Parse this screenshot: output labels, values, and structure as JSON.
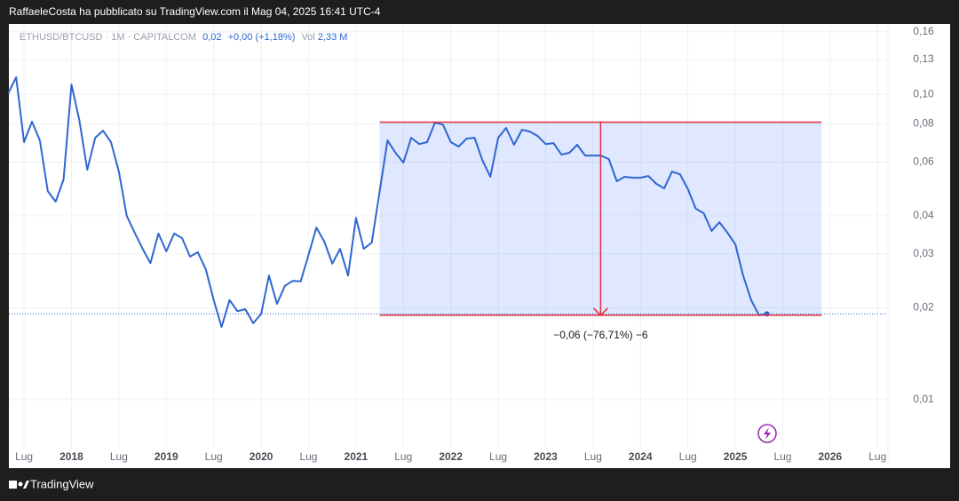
{
  "header": "RaffaeleCosta ha pubblicato su TradingView.com il Mag 04, 2025 16:41 UTC-4",
  "brand": "TradingView",
  "chart_data": {
    "type": "line",
    "legend": {
      "last": "0,02",
      "change": "+0,00 (+1,18%)",
      "volume_label": "Vol",
      "volume": "2,33 M"
    },
    "x": [
      2017.333,
      2017.417,
      2017.5,
      2017.583,
      2017.667,
      2017.75,
      2017.833,
      2017.917,
      2018,
      2018.083,
      2018.167,
      2018.25,
      2018.333,
      2018.417,
      2018.5,
      2018.583,
      2018.667,
      2018.75,
      2018.833,
      2018.917,
      2019,
      2019.083,
      2019.167,
      2019.25,
      2019.333,
      2019.417,
      2019.5,
      2019.583,
      2019.667,
      2019.75,
      2019.833,
      2019.917,
      2020,
      2020.083,
      2020.167,
      2020.25,
      2020.333,
      2020.417,
      2020.5,
      2020.583,
      2020.667,
      2020.75,
      2020.833,
      2020.917,
      2021,
      2021.083,
      2021.167,
      2021.25,
      2021.333,
      2021.417,
      2021.5,
      2021.583,
      2021.667,
      2021.75,
      2021.833,
      2021.917,
      2022,
      2022.083,
      2022.167,
      2022.25,
      2022.333,
      2022.417,
      2022.5,
      2022.583,
      2022.667,
      2022.75,
      2022.833,
      2022.917,
      2023,
      2023.083,
      2023.167,
      2023.25,
      2023.333,
      2023.417,
      2023.5,
      2023.583,
      2023.667,
      2023.75,
      2023.833,
      2023.917,
      2024,
      2024.083,
      2024.167,
      2024.25,
      2024.333,
      2024.417,
      2024.5,
      2024.583,
      2024.667,
      2024.75,
      2024.833,
      2024.917,
      2025,
      2025.083,
      2025.167,
      2025.25,
      2025.333
    ],
    "series": [
      {
        "name": "ETHUSD/BTCUSD · 1M · CAPITALCOM",
        "color": "#2f66d0",
        "values": [
          0.1007,
          0.1136,
          0.0697,
          0.0813,
          0.0706,
          0.0482,
          0.0445,
          0.0526,
          0.1076,
          0.0824,
          0.0566,
          0.072,
          0.076,
          0.0697,
          0.0558,
          0.04,
          0.0352,
          0.0312,
          0.028,
          0.035,
          0.0306,
          0.035,
          0.0338,
          0.0294,
          0.0304,
          0.0267,
          0.0212,
          0.0173,
          0.0212,
          0.0195,
          0.0198,
          0.0178,
          0.0191,
          0.0255,
          0.0206,
          0.0236,
          0.0245,
          0.0244,
          0.0298,
          0.0366,
          0.0329,
          0.0279,
          0.0312,
          0.0255,
          0.0394,
          0.0312,
          0.0327,
          0.0482,
          0.0706,
          0.0643,
          0.0597,
          0.072,
          0.0687,
          0.0697,
          0.0807,
          0.0796,
          0.0697,
          0.0674,
          0.0716,
          0.072,
          0.0609,
          0.0537,
          0.072,
          0.0776,
          0.0683,
          0.0765,
          0.0755,
          0.073,
          0.0687,
          0.0692,
          0.0634,
          0.0643,
          0.0683,
          0.063,
          0.063,
          0.063,
          0.0613,
          0.0519,
          0.0537,
          0.0533,
          0.0533,
          0.054,
          0.0509,
          0.0492,
          0.0558,
          0.0547,
          0.0489,
          0.0422,
          0.0408,
          0.0357,
          0.0381,
          0.0352,
          0.0323,
          0.0255,
          0.0212,
          0.0189,
          0.0191
        ]
      }
    ],
    "range": {
      "x": [
        2021.25,
        2025.91
      ],
      "y": [
        0.081,
        0.0189
      ],
      "label": "−0,06 (−76,71%) −6"
    },
    "xlim": [
      2017.34,
      2026.61
    ],
    "xticks": [
      {
        "value": 2017.5,
        "label": "Lug"
      },
      2018,
      {
        "value": 2018.5,
        "label": "Lug"
      },
      2019,
      {
        "value": 2019.5,
        "label": "Lug"
      },
      2020,
      {
        "value": 2020.5,
        "label": "Lug"
      },
      2021,
      {
        "value": 2021.5,
        "label": "Lug"
      },
      2022,
      {
        "value": 2022.5,
        "label": "Lug"
      },
      2023,
      {
        "value": 2023.5,
        "label": "Lug"
      },
      2024,
      {
        "value": 2024.5,
        "label": "Lug"
      },
      2025,
      {
        "value": 2025.5,
        "label": "Lug"
      },
      2026,
      {
        "value": 2026.5,
        "label": "Lug"
      }
    ],
    "ylim": [
      0.00692,
      0.1698
    ],
    "log": true,
    "yticks": [
      {
        "value": 0.16,
        "label": "0,16"
      },
      {
        "value": 0.13,
        "label": "0,13"
      },
      {
        "value": 0.1,
        "label": "0,10"
      },
      {
        "value": 0.08,
        "label": "0,08"
      },
      {
        "value": 0.06,
        "label": "0,06"
      },
      {
        "value": 0.04,
        "label": "0,04"
      },
      {
        "value": 0.03,
        "label": "0,03"
      },
      {
        "value": 0.02,
        "label": "0,02"
      },
      {
        "value": 0.01,
        "label": "0,01"
      }
    ],
    "grid": true
  }
}
